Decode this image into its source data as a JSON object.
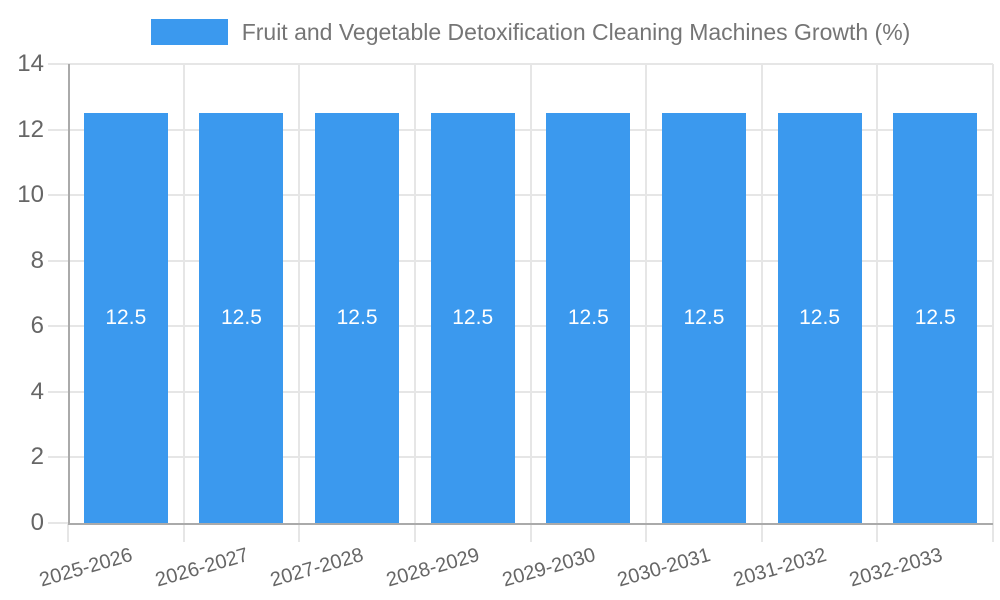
{
  "chart_data": {
    "type": "bar",
    "title": "Fruit and Vegetable Detoxification Cleaning Machines Growth (%)",
    "categories": [
      "2025-2026",
      "2026-2027",
      "2027-2028",
      "2028-2029",
      "2029-2030",
      "2030-2031",
      "2031-2032",
      "2032-2033"
    ],
    "values": [
      12.5,
      12.5,
      12.5,
      12.5,
      12.5,
      12.5,
      12.5,
      12.5
    ],
    "xlabel": "",
    "ylabel": "",
    "ylim": [
      0,
      14
    ],
    "ytick_step": 2,
    "grid": true,
    "legend_position": "top",
    "colors": {
      "bar": "#3B99EE",
      "grid": "#E6E6E6",
      "axis": "#AAAAAA",
      "tick_label": "#666666",
      "title": "#757575",
      "bar_label": "#FFFFFF"
    }
  }
}
